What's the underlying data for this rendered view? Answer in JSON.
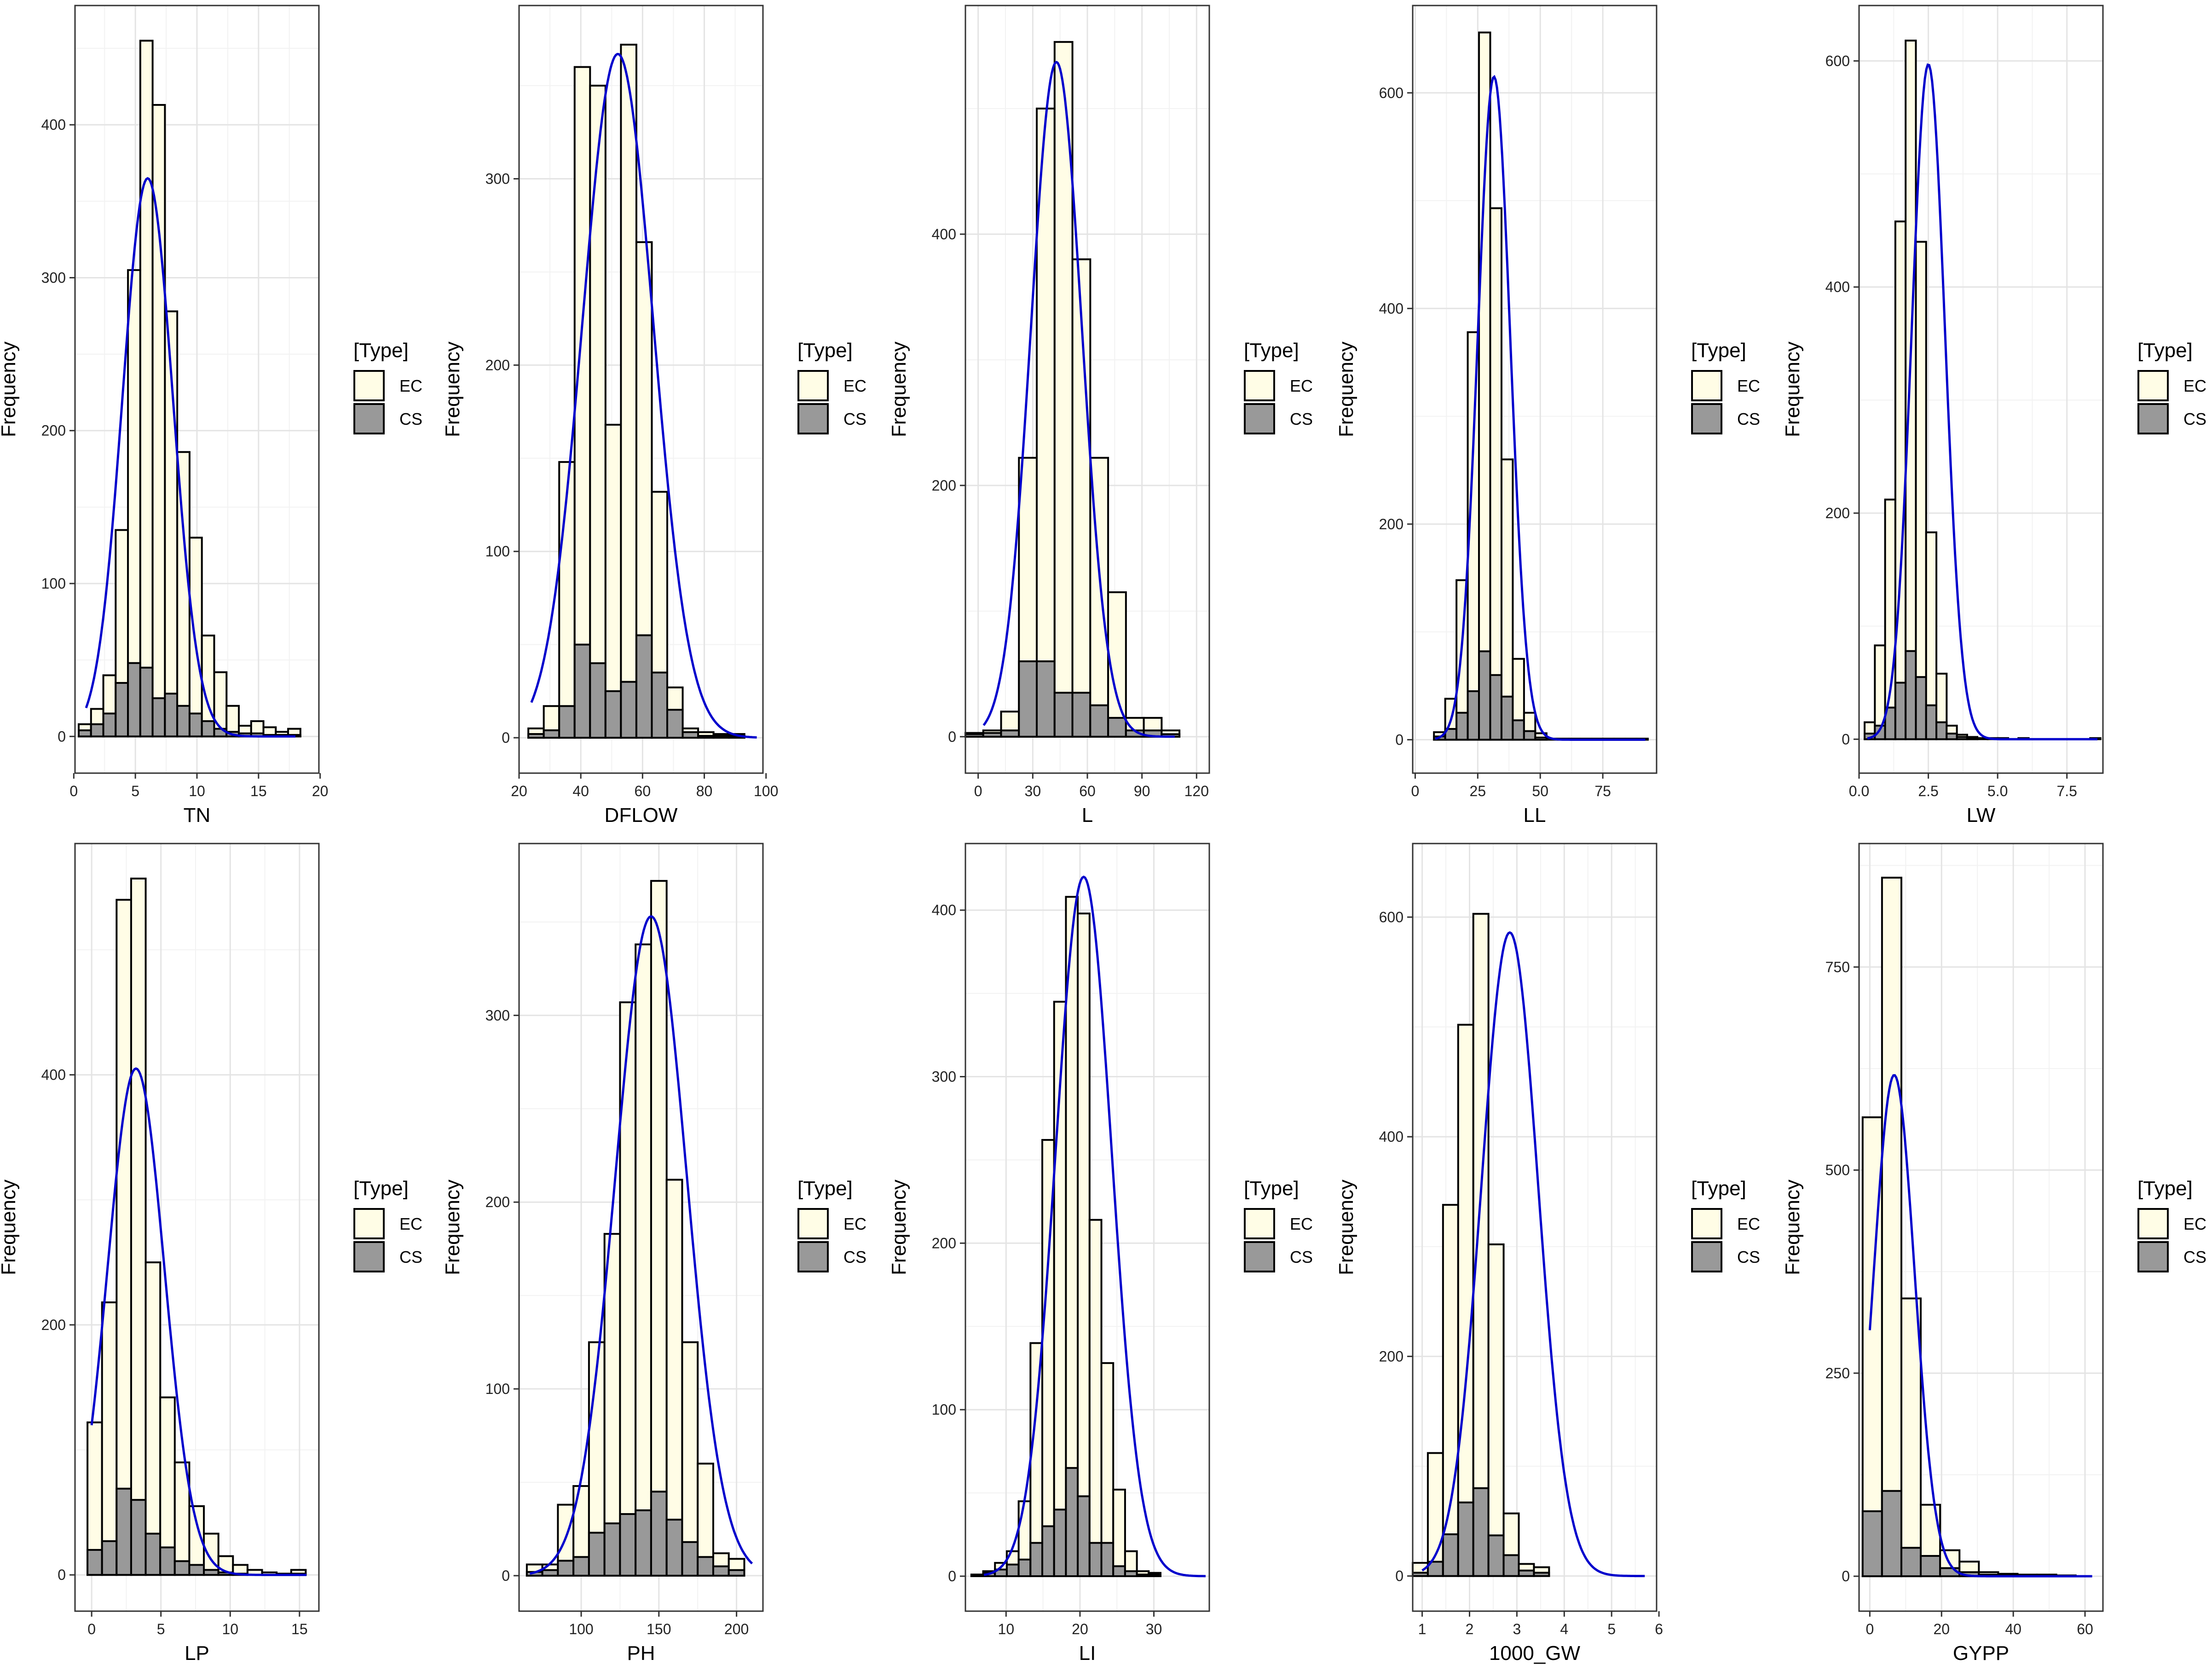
{
  "colors": {
    "ec_fill": "#FFFDE6",
    "cs_fill": "#999999",
    "bar_stroke": "#000000",
    "curve": "#0000CC",
    "grid_major": "#E4E4E4",
    "grid_minor": "#F2F2F2",
    "panel_border": "#333333"
  },
  "chart_data": [
    {
      "type": "bar",
      "xlabel": "TN",
      "ylabel": "Frequency",
      "legend_title": "[Type]",
      "legend": [
        "EC",
        "CS"
      ],
      "xlim": [
        0.1,
        19.9
      ],
      "ylim": [
        -24,
        478
      ],
      "xticks": [
        0,
        5,
        10,
        15,
        20
      ],
      "yticks": [
        0,
        100,
        200,
        300,
        400
      ],
      "bin_start": 0.4,
      "bin_width": 1.0,
      "ec": [
        8,
        18,
        40,
        135,
        305,
        455,
        413,
        278,
        186,
        130,
        66,
        42,
        20,
        7,
        10,
        6,
        3,
        5
      ],
      "cs": [
        4,
        8,
        15,
        35,
        48,
        45,
        25,
        28,
        20,
        15,
        10,
        5,
        3,
        2,
        2,
        1,
        1,
        1
      ],
      "curve": {
        "type": "normal",
        "mean": 6.0,
        "sd": 2.05,
        "peak": 365,
        "x0": 1,
        "x1": 18
      }
    },
    {
      "type": "bar",
      "xlabel": "DFLOW",
      "ylabel": "Frequency",
      "legend_title": "[Type]",
      "legend": [
        "EC",
        "CS"
      ],
      "xlim": [
        20,
        99
      ],
      "ylim": [
        -19,
        393
      ],
      "xticks": [
        20,
        40,
        60,
        80,
        100
      ],
      "yticks": [
        0,
        100,
        200,
        300
      ],
      "bin_start": 23,
      "bin_width": 5,
      "ec": [
        5,
        17,
        148,
        360,
        350,
        168,
        372,
        266,
        132,
        27,
        5,
        3,
        2,
        2
      ],
      "cs": [
        2,
        4,
        17,
        50,
        40,
        25,
        30,
        55,
        35,
        15,
        3,
        1,
        1,
        1
      ],
      "curve": {
        "type": "normal",
        "mean": 52,
        "sd": 11.5,
        "peak": 367,
        "x0": 24,
        "x1": 97
      }
    },
    {
      "type": "bar",
      "xlabel": "L",
      "ylabel": "Frequency",
      "legend_title": "[Type]",
      "legend": [
        "EC",
        "CS"
      ],
      "xlim": [
        -7,
        127
      ],
      "ylim": [
        -29,
        582
      ],
      "xticks": [
        0,
        30,
        60,
        90,
        120
      ],
      "yticks": [
        0,
        200,
        400
      ],
      "bin_start": -7,
      "bin_width": 9.8,
      "ec": [
        3,
        5,
        20,
        222,
        500,
        553,
        380,
        222,
        115,
        15,
        15,
        5
      ],
      "cs": [
        2,
        3,
        5,
        60,
        60,
        35,
        35,
        25,
        15,
        5,
        5,
        2
      ],
      "curve": {
        "type": "normal",
        "mean": 43,
        "sd": 14,
        "peak": 537,
        "x0": 3,
        "x1": 108
      }
    },
    {
      "type": "bar",
      "xlabel": "LL",
      "ylabel": "Frequency",
      "legend_title": "[Type]",
      "legend": [
        "EC",
        "CS"
      ],
      "xlim": [
        -1,
        96.5
      ],
      "ylim": [
        -31,
        681
      ],
      "xticks": [
        0,
        25,
        50,
        75
      ],
      "yticks": [
        0,
        200,
        400,
        600
      ],
      "bin_start": 7.5,
      "bin_width": 4.5,
      "ec": [
        7,
        38,
        148,
        378,
        656,
        493,
        260,
        75,
        25,
        6,
        1,
        1,
        1,
        1,
        1,
        1,
        1,
        1,
        1
      ],
      "cs": [
        3,
        10,
        25,
        45,
        82,
        60,
        40,
        18,
        8,
        2,
        0,
        0,
        0,
        0,
        0,
        0,
        0,
        0,
        0
      ],
      "curve": {
        "type": "normal",
        "mean": 31.5,
        "sd": 6.5,
        "peak": 615,
        "x0": 8,
        "x1": 92
      }
    },
    {
      "type": "bar",
      "xlabel": "LW",
      "ylabel": "Frequency",
      "legend_title": "[Type]",
      "legend": [
        "EC",
        "CS"
      ],
      "xlim": [
        0,
        8.8
      ],
      "ylim": [
        -30,
        649
      ],
      "xticks": [
        0.0,
        2.5,
        5.0,
        7.5
      ],
      "yticks": [
        0,
        200,
        400,
        600
      ],
      "bin_start": 0.2,
      "bin_width": 0.37,
      "ec": [
        15,
        83,
        212,
        458,
        618,
        440,
        183,
        58,
        12,
        4,
        2,
        1,
        1,
        1,
        0,
        1,
        0,
        0,
        0,
        0,
        0,
        0,
        1
      ],
      "cs": [
        5,
        12,
        28,
        50,
        78,
        55,
        30,
        15,
        5,
        2,
        1,
        0,
        0,
        0,
        0,
        0,
        0,
        0,
        0,
        0,
        0,
        0,
        0
      ],
      "curve": {
        "type": "normal",
        "mean": 2.5,
        "sd": 0.6,
        "peak": 597,
        "x0": 0.3,
        "x1": 8.6
      }
    },
    {
      "type": "bar",
      "xlabel": "LP",
      "ylabel": "Frequency",
      "legend_title": "[Type]",
      "legend": [
        "EC",
        "CS"
      ],
      "xlim": [
        -1.2,
        16.4
      ],
      "ylim": [
        -29,
        585
      ],
      "xticks": [
        0,
        5,
        10,
        15
      ],
      "yticks": [
        0,
        200,
        400
      ],
      "bin_start": -0.3,
      "bin_width": 1.05,
      "ec": [
        122,
        218,
        540,
        557,
        250,
        142,
        90,
        55,
        33,
        15,
        8,
        4,
        2,
        1,
        4
      ],
      "cs": [
        20,
        27,
        69,
        60,
        33,
        22,
        11,
        8,
        4,
        2,
        1,
        0,
        0,
        0,
        1
      ],
      "curve": {
        "type": "normal",
        "mean": 3.2,
        "sd": 2.05,
        "peak": 405,
        "x0": 0,
        "x1": 15.5
      }
    },
    {
      "type": "bar",
      "xlabel": "PH",
      "ylabel": "Frequency",
      "legend_title": "[Type]",
      "legend": [
        "EC",
        "CS"
      ],
      "xlim": [
        60,
        217
      ],
      "ylim": [
        -19,
        392
      ],
      "xticks": [
        100,
        150,
        200
      ],
      "yticks": [
        0,
        100,
        200,
        300
      ],
      "bin_start": 65,
      "bin_width": 10,
      "ec": [
        6,
        6,
        38,
        48,
        125,
        183,
        307,
        338,
        372,
        212,
        125,
        60,
        12,
        9
      ],
      "cs": [
        2,
        3,
        8,
        10,
        23,
        28,
        33,
        35,
        45,
        30,
        18,
        10,
        5,
        3
      ],
      "curve": {
        "type": "normal",
        "mean": 145,
        "sd": 23,
        "peak": 353,
        "x0": 67,
        "x1": 210
      }
    },
    {
      "type": "bar",
      "xlabel": "LI",
      "ylabel": "Frequency",
      "legend_title": "[Type]",
      "legend": [
        "EC",
        "CS"
      ],
      "xlim": [
        4.5,
        37.5
      ],
      "ylim": [
        -21,
        440
      ],
      "xticks": [
        10,
        20,
        30
      ],
      "yticks": [
        0,
        100,
        200,
        300,
        400
      ],
      "bin_start": 5.3,
      "bin_width": 1.6,
      "ec": [
        1,
        3,
        8,
        15,
        45,
        140,
        262,
        345,
        408,
        398,
        214,
        128,
        52,
        15,
        3,
        2
      ],
      "cs": [
        0,
        2,
        4,
        7,
        10,
        20,
        30,
        40,
        65,
        48,
        20,
        20,
        6,
        3,
        1,
        1
      ],
      "curve": {
        "type": "normal",
        "mean": 20.5,
        "sd": 3.8,
        "peak": 420,
        "x0": 7,
        "x1": 37
      }
    },
    {
      "type": "bar",
      "xlabel": "1000_GW",
      "ylabel": "Frequency",
      "legend_title": "[Type]",
      "legend": [
        "EC",
        "CS"
      ],
      "xlim": [
        0.8,
        5.95
      ],
      "ylim": [
        -32,
        667
      ],
      "xticks": [
        1,
        2,
        3,
        4,
        5,
        6
      ],
      "yticks": [
        0,
        200,
        400,
        600
      ],
      "bin_start": 0.8,
      "bin_width": 0.32,
      "ec": [
        12,
        112,
        338,
        502,
        603,
        302,
        57,
        11,
        8
      ],
      "cs": [
        3,
        13,
        38,
        67,
        80,
        37,
        19,
        5,
        3
      ],
      "curve": {
        "type": "normal",
        "mean": 2.85,
        "sd": 0.6,
        "peak": 586,
        "x0": 1,
        "x1": 5.7
      }
    },
    {
      "type": "bar",
      "xlabel": "GYPP",
      "ylabel": "Frequency",
      "legend_title": "[Type]",
      "legend": [
        "EC",
        "CS"
      ],
      "xlim": [
        -3,
        65
      ],
      "ylim": [
        -43,
        902
      ],
      "xticks": [
        0,
        20,
        40,
        60
      ],
      "yticks": [
        0,
        250,
        500,
        750
      ],
      "bin_start": -2,
      "bin_width": 5.4,
      "ec": [
        565,
        860,
        342,
        88,
        32,
        18,
        5,
        3,
        2,
        2,
        1
      ],
      "cs": [
        80,
        105,
        35,
        25,
        10,
        5,
        2,
        1,
        1,
        1,
        0
      ],
      "curve": {
        "type": "normal",
        "mean": 6.8,
        "sd": 5.7,
        "peak": 617,
        "x0": 0,
        "x1": 62
      }
    }
  ]
}
